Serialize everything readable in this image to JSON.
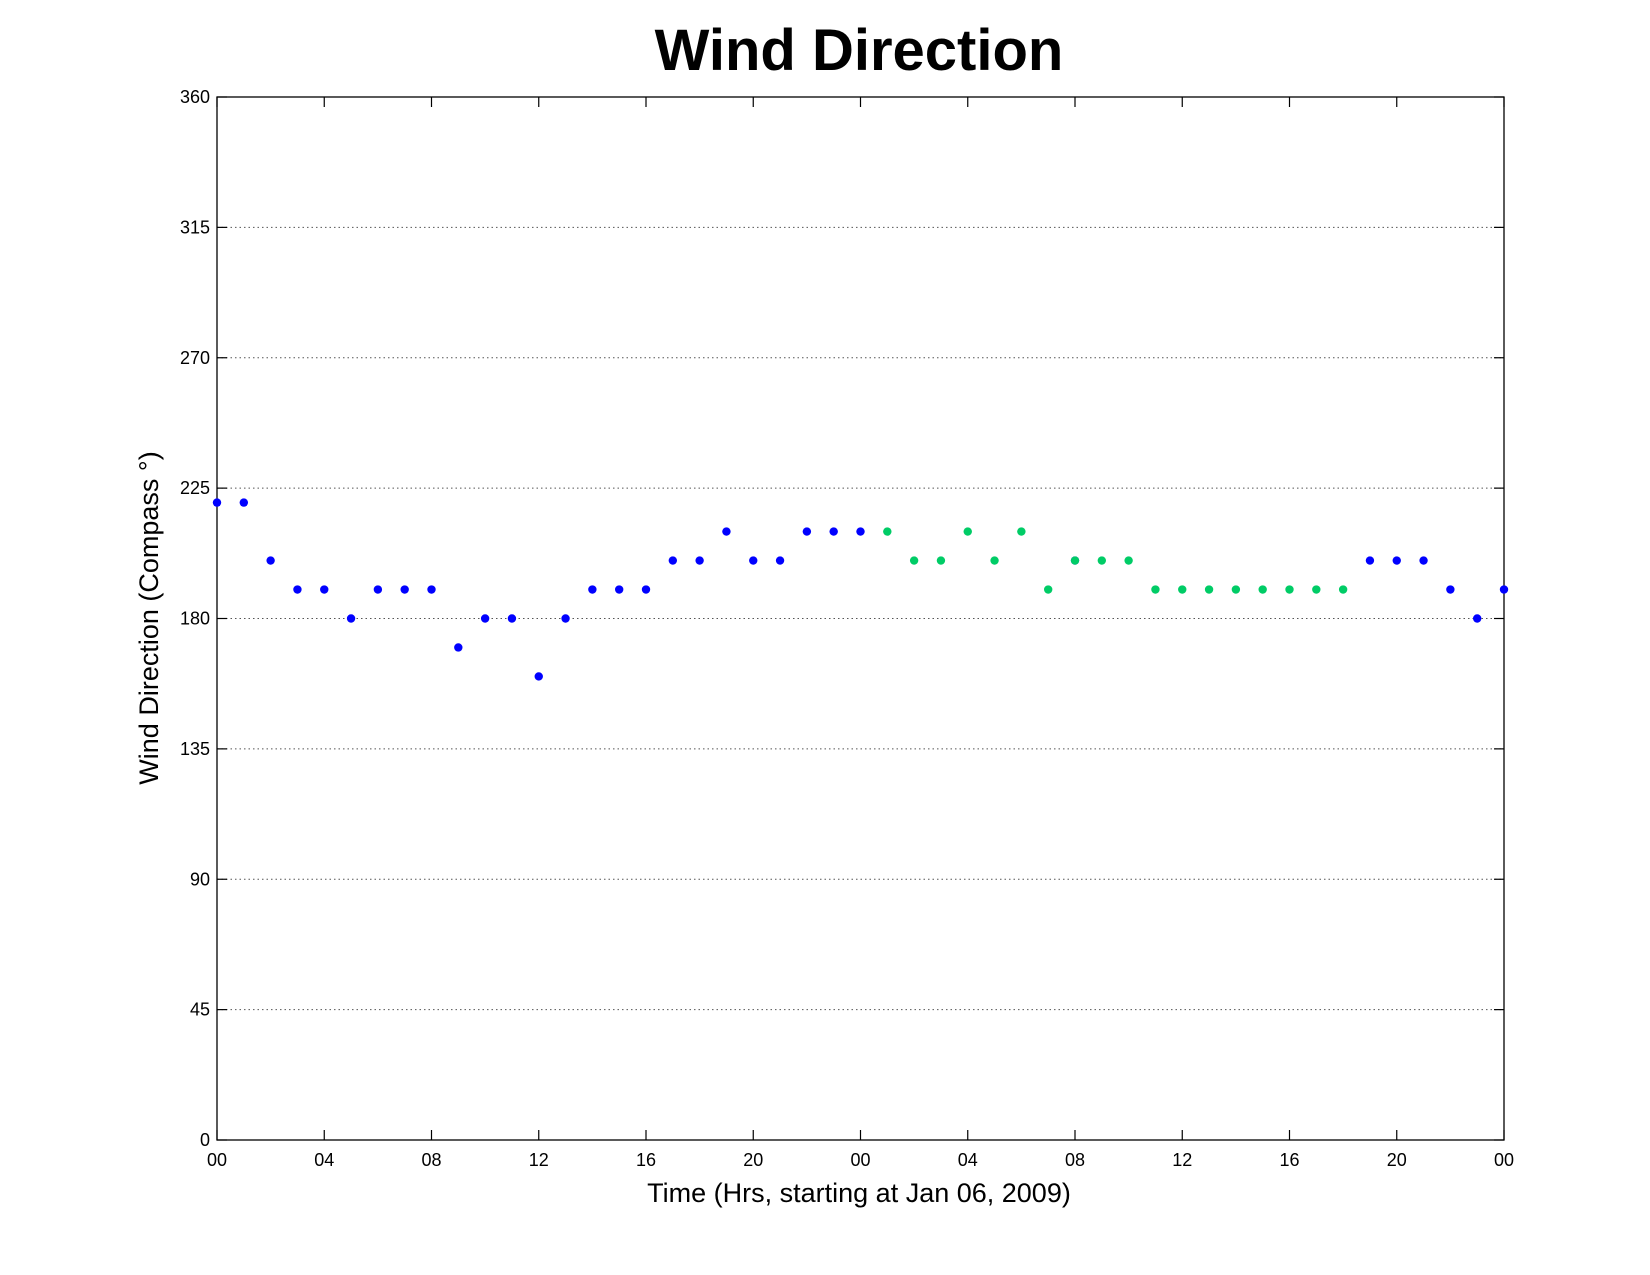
{
  "chart_data": {
    "type": "scatter",
    "title": "Wind Direction",
    "xlabel": "Time (Hrs, starting at Jan 06, 2009)",
    "ylabel": "Wind Direction (Compass  °)",
    "ylim": [
      0,
      360
    ],
    "yticks": [
      0,
      45,
      90,
      135,
      180,
      225,
      270,
      315,
      360
    ],
    "xlim_hours": [
      0,
      48
    ],
    "xticks": [
      {
        "hour": 0,
        "label": "00"
      },
      {
        "hour": 4,
        "label": "04"
      },
      {
        "hour": 8,
        "label": "08"
      },
      {
        "hour": 12,
        "label": "12"
      },
      {
        "hour": 16,
        "label": "16"
      },
      {
        "hour": 20,
        "label": "20"
      },
      {
        "hour": 24,
        "label": "00"
      },
      {
        "hour": 28,
        "label": "04"
      },
      {
        "hour": 32,
        "label": "08"
      },
      {
        "hour": 36,
        "label": "12"
      },
      {
        "hour": 40,
        "label": "16"
      },
      {
        "hour": 44,
        "label": "20"
      },
      {
        "hour": 48,
        "label": "00"
      }
    ],
    "grid": "horizontal-dotted",
    "legend": "none",
    "series": [
      {
        "color": "#0000ff",
        "points": [
          {
            "hour": 0,
            "value": 220
          },
          {
            "hour": 1,
            "value": 220
          },
          {
            "hour": 2,
            "value": 200
          },
          {
            "hour": 3,
            "value": 190
          },
          {
            "hour": 4,
            "value": 190
          },
          {
            "hour": 5,
            "value": 180
          },
          {
            "hour": 6,
            "value": 190
          },
          {
            "hour": 7,
            "value": 190
          },
          {
            "hour": 8,
            "value": 190
          },
          {
            "hour": 9,
            "value": 170
          },
          {
            "hour": 10,
            "value": 180
          },
          {
            "hour": 11,
            "value": 180
          },
          {
            "hour": 12,
            "value": 160
          },
          {
            "hour": 13,
            "value": 180
          },
          {
            "hour": 14,
            "value": 190
          },
          {
            "hour": 15,
            "value": 190
          },
          {
            "hour": 16,
            "value": 190
          },
          {
            "hour": 17,
            "value": 200
          },
          {
            "hour": 18,
            "value": 200
          },
          {
            "hour": 19,
            "value": 210
          },
          {
            "hour": 20,
            "value": 200
          },
          {
            "hour": 21,
            "value": 200
          },
          {
            "hour": 22,
            "value": 210
          },
          {
            "hour": 23,
            "value": 210
          },
          {
            "hour": 24,
            "value": 210
          },
          {
            "hour": 32,
            "value": 200
          },
          {
            "hour": 43,
            "value": 200
          },
          {
            "hour": 44,
            "value": 200
          },
          {
            "hour": 45,
            "value": 200
          },
          {
            "hour": 46,
            "value": 190
          },
          {
            "hour": 47,
            "value": 180
          },
          {
            "hour": 48,
            "value": 190
          }
        ]
      },
      {
        "color": "#00cc66",
        "points": [
          {
            "hour": 25,
            "value": 210
          },
          {
            "hour": 26,
            "value": 200
          },
          {
            "hour": 27,
            "value": 200
          },
          {
            "hour": 28,
            "value": 210
          },
          {
            "hour": 29,
            "value": 200
          },
          {
            "hour": 30,
            "value": 210
          },
          {
            "hour": 31,
            "value": 190
          },
          {
            "hour": 32,
            "value": 200
          },
          {
            "hour": 33,
            "value": 200
          },
          {
            "hour": 34,
            "value": 200
          },
          {
            "hour": 35,
            "value": 190
          },
          {
            "hour": 36,
            "value": 190
          },
          {
            "hour": 37,
            "value": 190
          },
          {
            "hour": 38,
            "value": 190
          },
          {
            "hour": 39,
            "value": 190
          },
          {
            "hour": 40,
            "value": 190
          },
          {
            "hour": 41,
            "value": 190
          },
          {
            "hour": 42,
            "value": 190
          }
        ]
      }
    ]
  }
}
